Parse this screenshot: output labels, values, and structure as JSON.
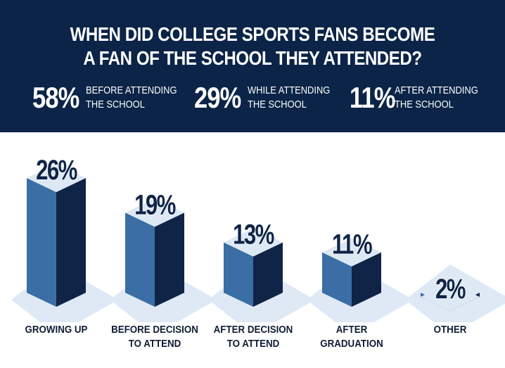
{
  "header": {
    "title_line1": "WHEN DID COLLEGE SPORTS FANS BECOME",
    "title_line2": "A FAN OF THE SCHOOL THEY ATTENDED?",
    "stats": [
      {
        "value": "58%",
        "line1": "BEFORE ATTENDING",
        "line2": "THE SCHOOL"
      },
      {
        "value": "29%",
        "line1": "WHILE ATTENDING",
        "line2": "THE SCHOOL"
      },
      {
        "value": "11%",
        "line1": "AFTER ATTENDING",
        "line2": "THE SCHOOL"
      }
    ]
  },
  "colors": {
    "header_bg": "#0b2447",
    "bar_front": "#3a6ea5",
    "bar_side": "#0f2447",
    "bar_top": "#dce8f4",
    "shadow": "#dfe9f5",
    "label_text": "#0f1d33"
  },
  "chart_data": {
    "type": "bar",
    "title": "",
    "xlabel": "",
    "ylabel": "",
    "categories": [
      [
        "GROWING UP"
      ],
      [
        "BEFORE DECISION",
        "TO ATTEND"
      ],
      [
        "AFTER DECISION",
        "TO ATTEND"
      ],
      [
        "AFTER",
        "GRADUATION"
      ],
      [
        "OTHER"
      ]
    ],
    "values": [
      26,
      19,
      13,
      11,
      2
    ],
    "value_labels": [
      "26%",
      "19%",
      "13%",
      "11%",
      "2%"
    ],
    "ylim": [
      0,
      26
    ],
    "grid": false,
    "legend": "none"
  }
}
